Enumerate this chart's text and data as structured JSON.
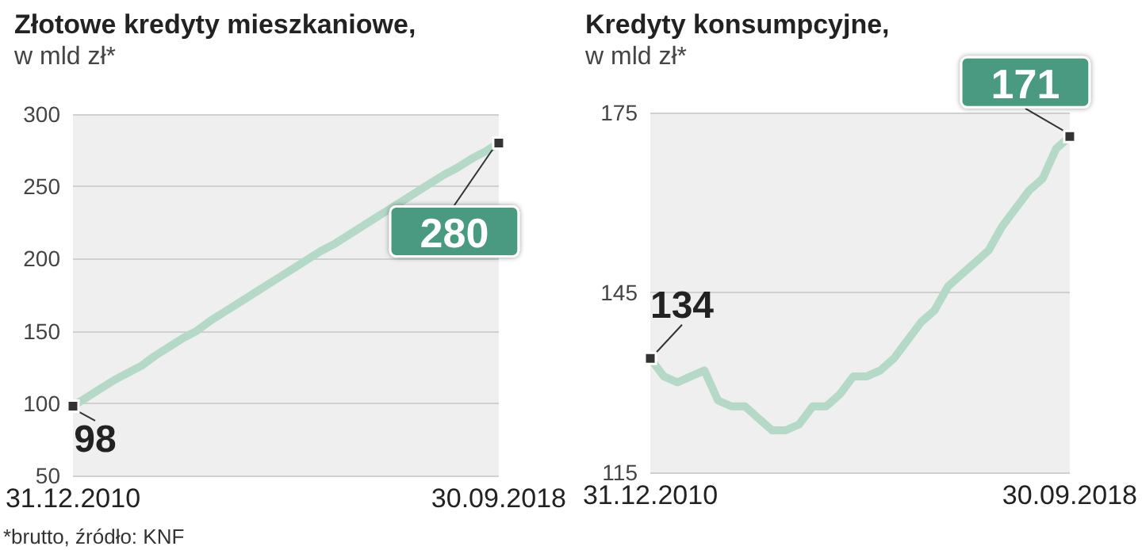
{
  "chart_data": [
    {
      "type": "line",
      "title": "Złotowe kredyty mieszkaniowe,",
      "subtitle": "w mld zł*",
      "categories": [
        "31.12.2010",
        null,
        null,
        null,
        null,
        null,
        null,
        null,
        null,
        null,
        null,
        null,
        null,
        null,
        null,
        null,
        null,
        null,
        null,
        null,
        null,
        null,
        null,
        null,
        null,
        null,
        null,
        null,
        null,
        null,
        null,
        "30.09.2018"
      ],
      "series": [
        {
          "color": "#b5d9c7",
          "values": [
            98,
            104,
            110,
            116,
            121,
            126,
            133,
            139,
            145,
            150,
            157,
            163,
            169,
            175,
            181,
            187,
            193,
            199,
            205,
            210,
            216,
            222,
            228,
            234,
            240,
            246,
            252,
            258,
            263,
            269,
            274,
            280
          ],
          "value_labels": [
            "98",
            null,
            null,
            null,
            null,
            null,
            null,
            null,
            null,
            null,
            null,
            null,
            null,
            null,
            null,
            null,
            null,
            null,
            null,
            null,
            null,
            null,
            null,
            null,
            null,
            null,
            null,
            null,
            null,
            null,
            null,
            "280"
          ]
        }
      ],
      "ylim": [
        50,
        300
      ],
      "yticks": [
        50,
        100,
        150,
        200,
        250,
        300
      ],
      "grid": "y",
      "annotations": [
        "*brutto, źródło: KNF"
      ]
    },
    {
      "type": "line",
      "title": "Kredyty konsumpcyjne,",
      "subtitle": "w mld zł*",
      "categories": [
        "31.12.2010",
        null,
        null,
        null,
        null,
        null,
        null,
        null,
        null,
        null,
        null,
        null,
        null,
        null,
        null,
        null,
        null,
        null,
        null,
        null,
        null,
        null,
        null,
        null,
        null,
        null,
        null,
        null,
        null,
        null,
        null,
        "30.09.2018"
      ],
      "series": [
        {
          "color": "#b5d9c7",
          "values": [
            134,
            131,
            130,
            131,
            132,
            127,
            126,
            126,
            124,
            122,
            122,
            123,
            126,
            126,
            128,
            131,
            131,
            132,
            134,
            137,
            140,
            142,
            146,
            148,
            150,
            152,
            156,
            159,
            162,
            164,
            169,
            171
          ],
          "value_labels": [
            "134",
            null,
            null,
            null,
            null,
            null,
            null,
            null,
            null,
            null,
            null,
            null,
            null,
            null,
            null,
            null,
            null,
            null,
            null,
            null,
            null,
            null,
            null,
            null,
            null,
            null,
            null,
            null,
            null,
            null,
            null,
            "171"
          ]
        }
      ],
      "ylim": [
        115,
        175
      ],
      "yticks": [
        115,
        145,
        175
      ],
      "grid": "y"
    }
  ]
}
